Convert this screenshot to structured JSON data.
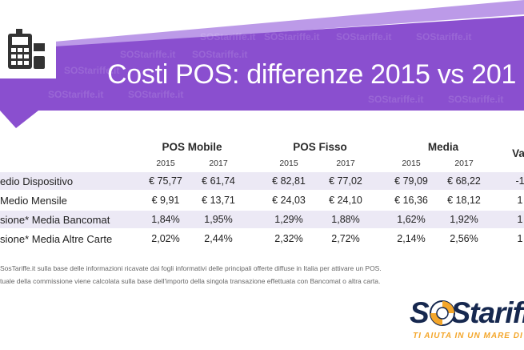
{
  "title": "Costi POS: differenze 2015 vs 201",
  "watermark_text": "SOStariffe.it",
  "headers": {
    "pos_mobile": "POS Mobile",
    "pos_fisso": "POS Fisso",
    "media": "Media",
    "variazione": "Va"
  },
  "years": [
    "2015",
    "2017",
    "2015",
    "2017",
    "2015",
    "2017"
  ],
  "rows": [
    {
      "label": "edio Dispositivo",
      "values": [
        "€ 75,77",
        "€ 61,74",
        "€ 82,81",
        "€ 77,02",
        "€ 79,09",
        "€ 68,22",
        "-1"
      ]
    },
    {
      "label": "Medio Mensile",
      "values": [
        "€ 9,91",
        "€ 13,71",
        "€ 24,03",
        "€ 24,10",
        "€ 16,36",
        "€ 18,12",
        "1"
      ]
    },
    {
      "label": "sione* Media Bancomat",
      "values": [
        "1,84%",
        "1,95%",
        "1,29%",
        "1,88%",
        "1,62%",
        "1,92%",
        "1"
      ]
    },
    {
      "label": "sione* Media Altre Carte",
      "values": [
        "2,02%",
        "2,44%",
        "2,32%",
        "2,72%",
        "2,14%",
        "2,56%",
        "1"
      ]
    }
  ],
  "footnotes": [
    "SosTariffe.it sulla base delle informazioni ricavate dai fogli informativi delle principali offerte diffuse in Italia per attivare un POS.",
    "tuale della commissione viene calcolata sulla base dell'importo della singola transazione effettuata con Bancomat o altra carta."
  ],
  "logo": {
    "text": "SOStariff",
    "tagline": "TI AIUTA IN UN MARE DI C"
  },
  "colors": {
    "purple": "#8a4fcf",
    "purple_light": "#b58fe6",
    "row_shade": "#ece9f5",
    "logo_navy": "#16284f",
    "logo_orange": "#f4a62a"
  },
  "icons": [
    "pos-terminal-icon",
    "lifebuoy-icon"
  ]
}
